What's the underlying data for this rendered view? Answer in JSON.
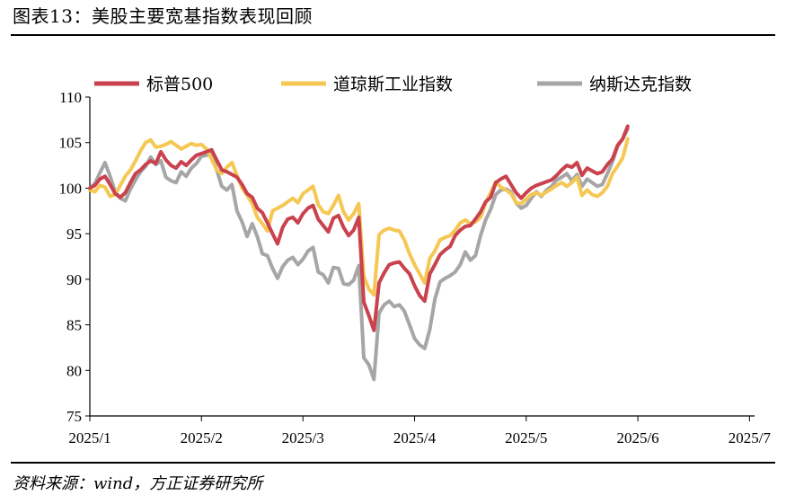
{
  "header": {
    "title": "图表13：美股主要宽基指数表现回顾"
  },
  "footer": {
    "source": "资料来源：wind，方正证券研究所"
  },
  "chart_data": {
    "type": "line",
    "title": "",
    "xlabel": "",
    "ylabel": "",
    "ylim": [
      75,
      110
    ],
    "yticks": [
      75,
      80,
      85,
      90,
      95,
      100,
      105,
      110
    ],
    "xlim": [
      0,
      131
    ],
    "xticks": [
      {
        "label": "2025/1",
        "x": 0
      },
      {
        "label": "2025/2",
        "x": 22
      },
      {
        "label": "2025/3",
        "x": 42
      },
      {
        "label": "2025/4",
        "x": 64
      },
      {
        "label": "2025/5",
        "x": 86
      },
      {
        "label": "2025/6",
        "x": 108
      },
      {
        "label": "2025/7",
        "x": 130
      }
    ],
    "grid": false,
    "legend_position": "top",
    "series": [
      {
        "name": "标普500",
        "color": "#C9424D",
        "points": [
          [
            0,
            100
          ],
          [
            1,
            100.3
          ],
          [
            2,
            101
          ],
          [
            3,
            101.3
          ],
          [
            4,
            100.4
          ],
          [
            5,
            99.4
          ],
          [
            6,
            99
          ],
          [
            7,
            99.5
          ],
          [
            8,
            100.6
          ],
          [
            9,
            101.6
          ],
          [
            10,
            102
          ],
          [
            11,
            102.6
          ],
          [
            12,
            103
          ],
          [
            13,
            102.7
          ],
          [
            14,
            104
          ],
          [
            15,
            103.1
          ],
          [
            16,
            102.5
          ],
          [
            17,
            102.2
          ],
          [
            18,
            102.9
          ],
          [
            19,
            102.5
          ],
          [
            20,
            103.1
          ],
          [
            21,
            103.6
          ],
          [
            22,
            103.8
          ],
          [
            23,
            104
          ],
          [
            24,
            104.2
          ],
          [
            25,
            103.1
          ],
          [
            26,
            102
          ],
          [
            27,
            101.8
          ],
          [
            28,
            101.5
          ],
          [
            29,
            101.2
          ],
          [
            30,
            100.4
          ],
          [
            31,
            99.4
          ],
          [
            32,
            99
          ],
          [
            33,
            97.8
          ],
          [
            34,
            97.3
          ],
          [
            35,
            96.2
          ],
          [
            36,
            95
          ],
          [
            37,
            93.9
          ],
          [
            38,
            95.7
          ],
          [
            39,
            96.6
          ],
          [
            40,
            96.8
          ],
          [
            41,
            96.2
          ],
          [
            42,
            97.2
          ],
          [
            43,
            97.8
          ],
          [
            44,
            98.1
          ],
          [
            45,
            96.6
          ],
          [
            46,
            95.9
          ],
          [
            47,
            95.2
          ],
          [
            48,
            96.7
          ],
          [
            49,
            97
          ],
          [
            50,
            95.7
          ],
          [
            51,
            94.8
          ],
          [
            52,
            95.4
          ],
          [
            53,
            96.8
          ],
          [
            54,
            87.5
          ],
          [
            55,
            86
          ],
          [
            56,
            84.4
          ],
          [
            57,
            89.6
          ],
          [
            58,
            90.7
          ],
          [
            59,
            91.6
          ],
          [
            60,
            91.8
          ],
          [
            61,
            91.9
          ],
          [
            62,
            91.2
          ],
          [
            63,
            90.6
          ],
          [
            64,
            89.3
          ],
          [
            65,
            88.2
          ],
          [
            66,
            87.6
          ],
          [
            67,
            90.6
          ],
          [
            68,
            91.6
          ],
          [
            69,
            92.7
          ],
          [
            70,
            93.2
          ],
          [
            71,
            93.6
          ],
          [
            72,
            94.8
          ],
          [
            73,
            95.4
          ],
          [
            74,
            95.8
          ],
          [
            75,
            95.9
          ],
          [
            76,
            96.6
          ],
          [
            77,
            97.4
          ],
          [
            78,
            98.5
          ],
          [
            79,
            99
          ],
          [
            80,
            100.6
          ],
          [
            81,
            101
          ],
          [
            82,
            101.3
          ],
          [
            83,
            100.4
          ],
          [
            84,
            99.5
          ],
          [
            85,
            98.9
          ],
          [
            86,
            99.5
          ],
          [
            87,
            100
          ],
          [
            88,
            100.3
          ],
          [
            89,
            100.5
          ],
          [
            90,
            100.7
          ],
          [
            91,
            100.9
          ],
          [
            92,
            101.4
          ],
          [
            93,
            102
          ],
          [
            94,
            102.5
          ],
          [
            95,
            102.3
          ],
          [
            96,
            102.8
          ],
          [
            97,
            101.4
          ],
          [
            98,
            102.2
          ],
          [
            99,
            101.9
          ],
          [
            100,
            101.6
          ],
          [
            101,
            101.8
          ],
          [
            102,
            102.6
          ],
          [
            103,
            103.2
          ],
          [
            104,
            104.7
          ],
          [
            105,
            105.4
          ],
          [
            106,
            106.8
          ]
        ]
      },
      {
        "name": "道琼斯工业指数",
        "color": "#F5C853",
        "points": [
          [
            0,
            99.8
          ],
          [
            1,
            99.6
          ],
          [
            2,
            100.3
          ],
          [
            3,
            100.1
          ],
          [
            4,
            99.1
          ],
          [
            5,
            99.3
          ],
          [
            6,
            100.3
          ],
          [
            7,
            101.3
          ],
          [
            8,
            102
          ],
          [
            9,
            103
          ],
          [
            10,
            104.1
          ],
          [
            11,
            105
          ],
          [
            12,
            105.3
          ],
          [
            13,
            104.5
          ],
          [
            14,
            104.6
          ],
          [
            15,
            104.8
          ],
          [
            16,
            105.1
          ],
          [
            17,
            104.7
          ],
          [
            18,
            104.3
          ],
          [
            19,
            104.6
          ],
          [
            20,
            104.9
          ],
          [
            21,
            104.7
          ],
          [
            22,
            104.8
          ],
          [
            23,
            104.3
          ],
          [
            24,
            103.2
          ],
          [
            25,
            102
          ],
          [
            26,
            101.6
          ],
          [
            27,
            102.3
          ],
          [
            28,
            102.8
          ],
          [
            29,
            101.4
          ],
          [
            30,
            100
          ],
          [
            31,
            99.2
          ],
          [
            32,
            98.3
          ],
          [
            33,
            96.8
          ],
          [
            34,
            96.1
          ],
          [
            35,
            95.3
          ],
          [
            36,
            97.5
          ],
          [
            37,
            97.8
          ],
          [
            38,
            98.1
          ],
          [
            39,
            98.5
          ],
          [
            40,
            98.9
          ],
          [
            41,
            98.4
          ],
          [
            42,
            99.4
          ],
          [
            43,
            99.8
          ],
          [
            44,
            100.2
          ],
          [
            45,
            98.2
          ],
          [
            46,
            97.4
          ],
          [
            47,
            97.2
          ],
          [
            48,
            98.1
          ],
          [
            49,
            99.2
          ],
          [
            50,
            97.4
          ],
          [
            51,
            96.5
          ],
          [
            52,
            97.2
          ],
          [
            53,
            98.3
          ],
          [
            54,
            90.3
          ],
          [
            55,
            88.9
          ],
          [
            56,
            88.3
          ],
          [
            57,
            94.9
          ],
          [
            58,
            95.4
          ],
          [
            59,
            95.6
          ],
          [
            60,
            95.4
          ],
          [
            61,
            95.3
          ],
          [
            62,
            94.3
          ],
          [
            63,
            92.8
          ],
          [
            64,
            91.6
          ],
          [
            65,
            90.6
          ],
          [
            66,
            89.6
          ],
          [
            67,
            92.3
          ],
          [
            68,
            93.1
          ],
          [
            69,
            94.3
          ],
          [
            70,
            94.6
          ],
          [
            71,
            94.8
          ],
          [
            72,
            95.4
          ],
          [
            73,
            96.2
          ],
          [
            74,
            96.5
          ],
          [
            75,
            96.1
          ],
          [
            76,
            96.3
          ],
          [
            77,
            96.8
          ],
          [
            78,
            98.4
          ],
          [
            79,
            99.5
          ],
          [
            80,
            100.7
          ],
          [
            81,
            100.1
          ],
          [
            82,
            99.8
          ],
          [
            83,
            99.4
          ],
          [
            84,
            98.4
          ],
          [
            85,
            98.3
          ],
          [
            86,
            98.8
          ],
          [
            87,
            99.3
          ],
          [
            88,
            99.5
          ],
          [
            89,
            99.2
          ],
          [
            90,
            99.6
          ],
          [
            91,
            99.9
          ],
          [
            92,
            100.3
          ],
          [
            93,
            100.6
          ],
          [
            94,
            100.2
          ],
          [
            95,
            100.6
          ],
          [
            96,
            101.2
          ],
          [
            97,
            99.2
          ],
          [
            98,
            99.8
          ],
          [
            99,
            99.3
          ],
          [
            100,
            99.1
          ],
          [
            101,
            99.5
          ],
          [
            102,
            100.2
          ],
          [
            103,
            101.6
          ],
          [
            104,
            102.4
          ],
          [
            105,
            103.3
          ],
          [
            106,
            105.4
          ]
        ]
      },
      {
        "name": "纳斯达克指数",
        "color": "#A6A6A6",
        "points": [
          [
            0,
            100
          ],
          [
            1,
            100.5
          ],
          [
            2,
            101.7
          ],
          [
            3,
            102.8
          ],
          [
            4,
            101.3
          ],
          [
            5,
            99.6
          ],
          [
            6,
            98.9
          ],
          [
            7,
            98.6
          ],
          [
            8,
            99.9
          ],
          [
            9,
            100.9
          ],
          [
            10,
            101.8
          ],
          [
            11,
            102.4
          ],
          [
            12,
            103.4
          ],
          [
            13,
            102.6
          ],
          [
            14,
            103
          ],
          [
            15,
            101.2
          ],
          [
            16,
            100.8
          ],
          [
            17,
            100.6
          ],
          [
            18,
            101.8
          ],
          [
            19,
            101.3
          ],
          [
            20,
            102.2
          ],
          [
            21,
            102.7
          ],
          [
            22,
            103.5
          ],
          [
            23,
            103.6
          ],
          [
            24,
            103.8
          ],
          [
            25,
            102
          ],
          [
            26,
            100.2
          ],
          [
            27,
            99.8
          ],
          [
            28,
            100.4
          ],
          [
            29,
            97.5
          ],
          [
            30,
            96.3
          ],
          [
            31,
            94.7
          ],
          [
            32,
            96.1
          ],
          [
            33,
            94.7
          ],
          [
            34,
            92.8
          ],
          [
            35,
            92.6
          ],
          [
            36,
            91.2
          ],
          [
            37,
            90.1
          ],
          [
            38,
            91.4
          ],
          [
            39,
            92.1
          ],
          [
            40,
            92.4
          ],
          [
            41,
            91.6
          ],
          [
            42,
            92.2
          ],
          [
            43,
            93.1
          ],
          [
            44,
            93.5
          ],
          [
            45,
            90.8
          ],
          [
            46,
            90.5
          ],
          [
            47,
            89.6
          ],
          [
            48,
            91.3
          ],
          [
            49,
            91.2
          ],
          [
            50,
            89.5
          ],
          [
            51,
            89.4
          ],
          [
            52,
            89.9
          ],
          [
            53,
            91.5
          ],
          [
            54,
            81.4
          ],
          [
            55,
            80.6
          ],
          [
            56,
            79
          ],
          [
            57,
            86.3
          ],
          [
            58,
            87.2
          ],
          [
            59,
            87.6
          ],
          [
            60,
            87
          ],
          [
            61,
            87.2
          ],
          [
            62,
            86.5
          ],
          [
            63,
            85
          ],
          [
            64,
            83.5
          ],
          [
            65,
            82.8
          ],
          [
            66,
            82.4
          ],
          [
            67,
            84.5
          ],
          [
            68,
            87.8
          ],
          [
            69,
            89.7
          ],
          [
            70,
            90.1
          ],
          [
            71,
            90.4
          ],
          [
            72,
            90.8
          ],
          [
            73,
            91.6
          ],
          [
            74,
            93
          ],
          [
            75,
            92.1
          ],
          [
            76,
            92.6
          ],
          [
            77,
            94.8
          ],
          [
            78,
            96.5
          ],
          [
            79,
            97.7
          ],
          [
            80,
            99.3
          ],
          [
            81,
            99.8
          ],
          [
            82,
            99.9
          ],
          [
            83,
            99.6
          ],
          [
            84,
            98.4
          ],
          [
            85,
            97.8
          ],
          [
            86,
            98.1
          ],
          [
            87,
            98.9
          ],
          [
            88,
            99.6
          ],
          [
            89,
            99.1
          ],
          [
            90,
            99.8
          ],
          [
            91,
            100.2
          ],
          [
            92,
            100.9
          ],
          [
            93,
            101.2
          ],
          [
            94,
            101.6
          ],
          [
            95,
            100.8
          ],
          [
            96,
            101.5
          ],
          [
            97,
            100.2
          ],
          [
            98,
            101
          ],
          [
            99,
            100.6
          ],
          [
            100,
            100.2
          ],
          [
            101,
            100.4
          ],
          [
            102,
            101.6
          ],
          [
            103,
            102.9
          ],
          [
            104,
            104.6
          ],
          [
            105,
            105.4
          ],
          [
            106,
            106.5
          ]
        ]
      }
    ]
  }
}
